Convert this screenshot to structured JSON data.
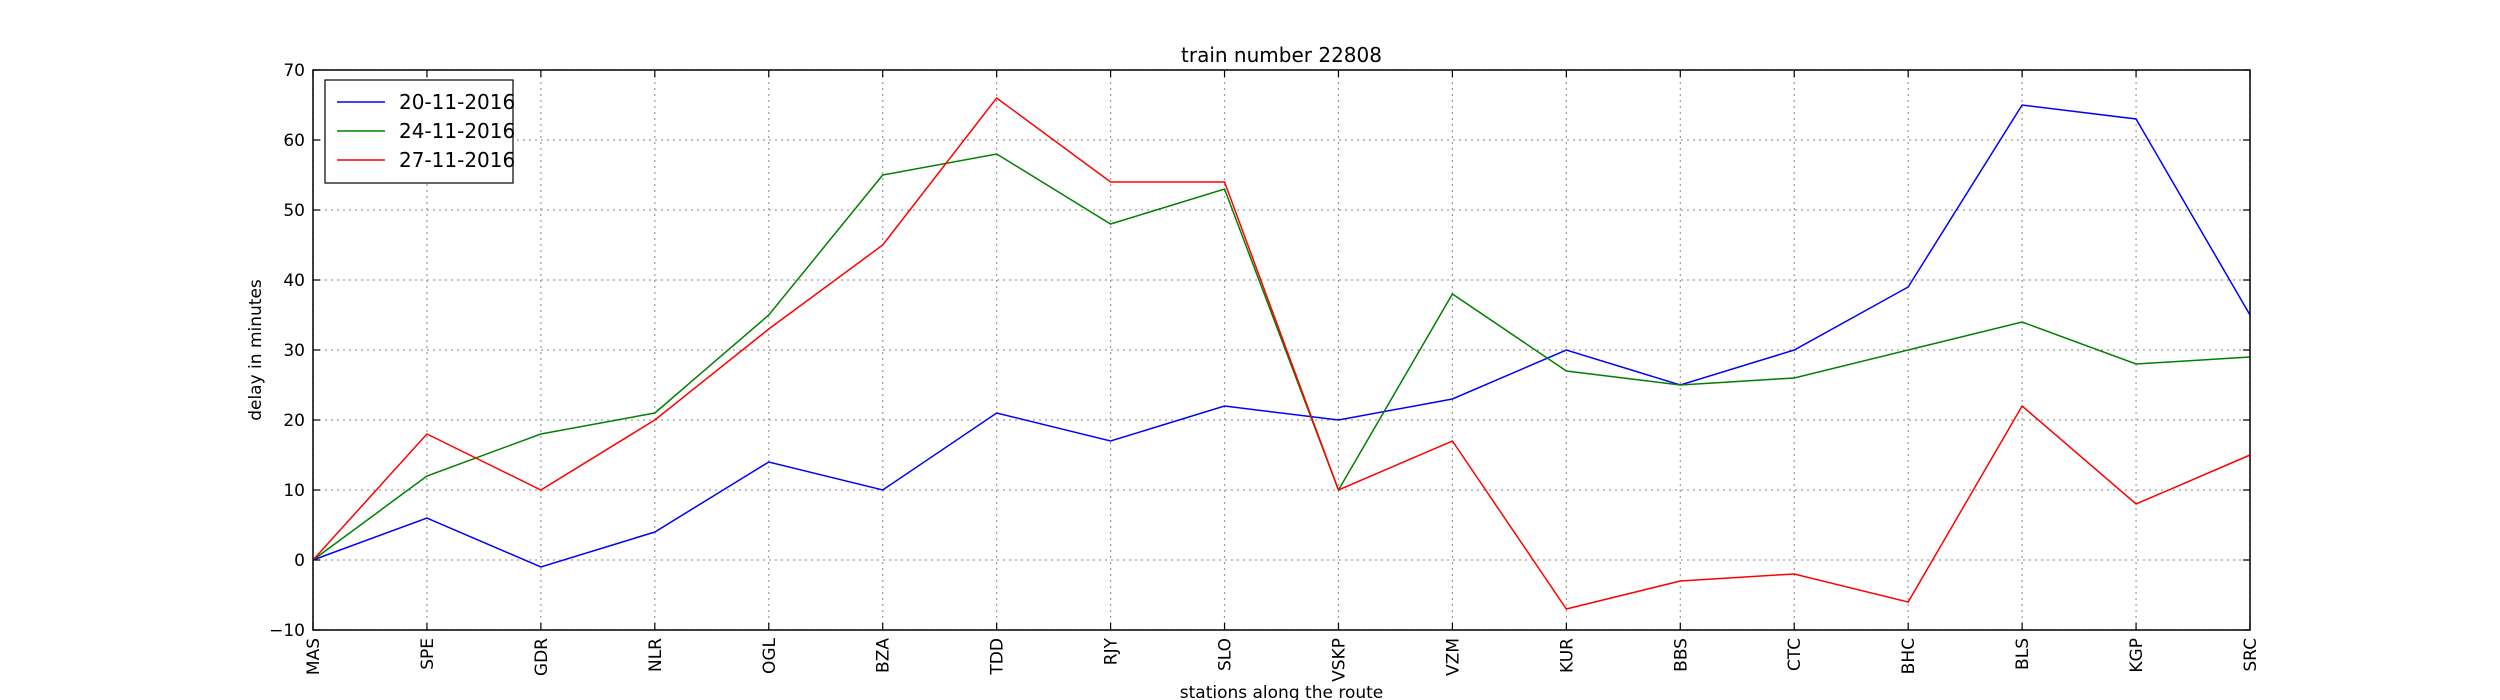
{
  "chart_data": {
    "type": "line",
    "title": "train number 22808",
    "xlabel": "stations along the route",
    "ylabel": "delay in minutes",
    "categories": [
      "MAS",
      "SPE",
      "GDR",
      "NLR",
      "OGL",
      "BZA",
      "TDD",
      "RJY",
      "SLO",
      "VSKP",
      "VZM",
      "KUR",
      "BBS",
      "CTC",
      "BHC",
      "BLS",
      "KGP",
      "SRC"
    ],
    "ylim": [
      -10,
      70
    ],
    "yticks": [
      -10,
      0,
      10,
      20,
      30,
      40,
      50,
      60,
      70
    ],
    "grid": true,
    "legend_position": "top-left",
    "series": [
      {
        "name": "20-11-2016",
        "color": "#0000ff",
        "values": [
          0,
          6,
          -1,
          4,
          14,
          10,
          21,
          17,
          22,
          20,
          23,
          30,
          25,
          30,
          39,
          65,
          63,
          35
        ]
      },
      {
        "name": "24-11-2016",
        "color": "#008000",
        "values": [
          0,
          12,
          18,
          21,
          35,
          55,
          58,
          48,
          53,
          10,
          38,
          27,
          25,
          26,
          30,
          34,
          28,
          29
        ]
      },
      {
        "name": "27-11-2016",
        "color": "#ff0000",
        "values": [
          0,
          18,
          10,
          20,
          33,
          45,
          66,
          54,
          54,
          10,
          17,
          -7,
          -3,
          -2,
          -6,
          22,
          8,
          15
        ]
      }
    ]
  }
}
